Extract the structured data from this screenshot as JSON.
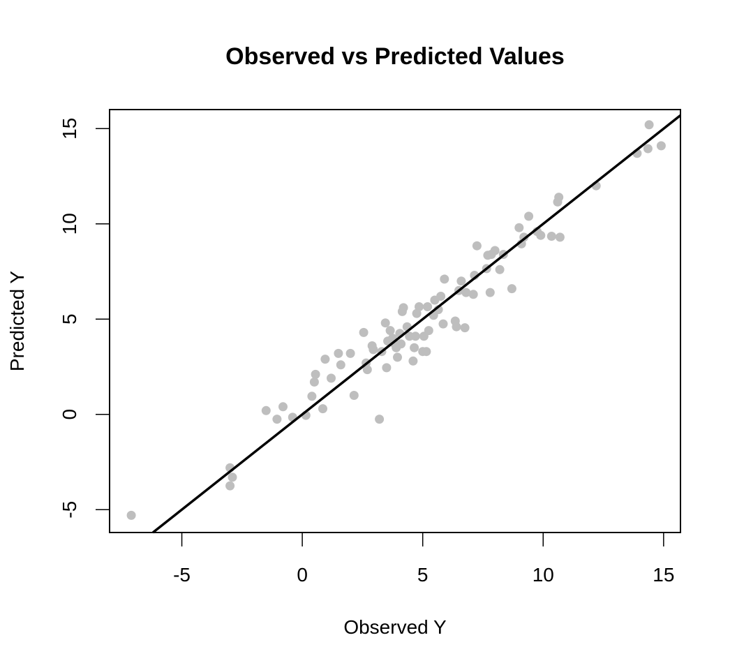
{
  "chart_data": {
    "type": "scatter",
    "title": "Observed vs Predicted Values",
    "xlabel": "Observed Y",
    "ylabel": "Predicted Y",
    "xlim": [
      -8.0,
      15.7
    ],
    "ylim": [
      -6.2,
      16.0
    ],
    "x_ticks": [
      -5,
      0,
      5,
      10,
      15
    ],
    "y_ticks": [
      -5,
      0,
      5,
      10,
      15
    ],
    "grid": false,
    "point_color": "#bebebe",
    "line_color": "#000000",
    "reference_line": {
      "intercept": 0,
      "slope": 1
    },
    "series": [
      {
        "points": [
          [
            -7.1,
            -5.3
          ],
          [
            -3.0,
            -2.8
          ],
          [
            -2.9,
            -3.3
          ],
          [
            -3.0,
            -3.75
          ],
          [
            -1.5,
            0.2
          ],
          [
            -1.05,
            -0.25
          ],
          [
            -0.8,
            0.4
          ],
          [
            -0.4,
            -0.15
          ],
          [
            0.15,
            -0.05
          ],
          [
            0.4,
            0.95
          ],
          [
            0.5,
            1.7
          ],
          [
            0.55,
            2.1
          ],
          [
            0.85,
            0.3
          ],
          [
            0.95,
            2.9
          ],
          [
            1.2,
            1.9
          ],
          [
            1.5,
            3.2
          ],
          [
            1.6,
            2.6
          ],
          [
            2.0,
            3.2
          ],
          [
            2.15,
            1.0
          ],
          [
            2.55,
            4.3
          ],
          [
            2.65,
            2.7
          ],
          [
            2.7,
            2.35
          ],
          [
            2.9,
            3.6
          ],
          [
            2.95,
            3.4
          ],
          [
            3.2,
            -0.25
          ],
          [
            3.3,
            3.3
          ],
          [
            3.45,
            4.8
          ],
          [
            3.5,
            2.45
          ],
          [
            3.55,
            3.85
          ],
          [
            3.65,
            4.4
          ],
          [
            3.75,
            4.0
          ],
          [
            3.8,
            3.75
          ],
          [
            3.9,
            3.5
          ],
          [
            3.95,
            3.0
          ],
          [
            4.05,
            4.25
          ],
          [
            4.1,
            3.7
          ],
          [
            4.15,
            5.4
          ],
          [
            4.2,
            5.6
          ],
          [
            4.35,
            4.6
          ],
          [
            4.45,
            4.1
          ],
          [
            4.6,
            2.8
          ],
          [
            4.65,
            3.5
          ],
          [
            4.7,
            4.1
          ],
          [
            4.75,
            5.3
          ],
          [
            4.85,
            5.65
          ],
          [
            5.0,
            3.3
          ],
          [
            5.05,
            4.1
          ],
          [
            5.15,
            3.3
          ],
          [
            5.2,
            5.65
          ],
          [
            5.25,
            4.4
          ],
          [
            5.45,
            5.2
          ],
          [
            5.5,
            6.0
          ],
          [
            5.65,
            5.5
          ],
          [
            5.75,
            6.2
          ],
          [
            5.85,
            4.75
          ],
          [
            5.9,
            7.1
          ],
          [
            6.35,
            4.9
          ],
          [
            6.4,
            4.6
          ],
          [
            6.5,
            6.5
          ],
          [
            6.6,
            7.0
          ],
          [
            6.75,
            4.55
          ],
          [
            6.8,
            6.4
          ],
          [
            7.1,
            6.3
          ],
          [
            7.15,
            7.3
          ],
          [
            7.25,
            8.85
          ],
          [
            7.65,
            7.65
          ],
          [
            7.7,
            8.35
          ],
          [
            7.8,
            6.4
          ],
          [
            7.85,
            8.4
          ],
          [
            8.0,
            8.6
          ],
          [
            8.2,
            7.6
          ],
          [
            8.35,
            8.4
          ],
          [
            8.7,
            6.6
          ],
          [
            9.0,
            9.8
          ],
          [
            9.1,
            8.95
          ],
          [
            9.2,
            9.3
          ],
          [
            9.4,
            10.4
          ],
          [
            9.75,
            9.6
          ],
          [
            9.9,
            9.4
          ],
          [
            10.35,
            9.35
          ],
          [
            10.6,
            11.15
          ],
          [
            10.65,
            11.4
          ],
          [
            10.7,
            9.3
          ],
          [
            12.2,
            12.0
          ],
          [
            13.9,
            13.7
          ],
          [
            14.35,
            13.95
          ],
          [
            14.4,
            15.2
          ],
          [
            14.9,
            14.1
          ]
        ]
      }
    ]
  }
}
